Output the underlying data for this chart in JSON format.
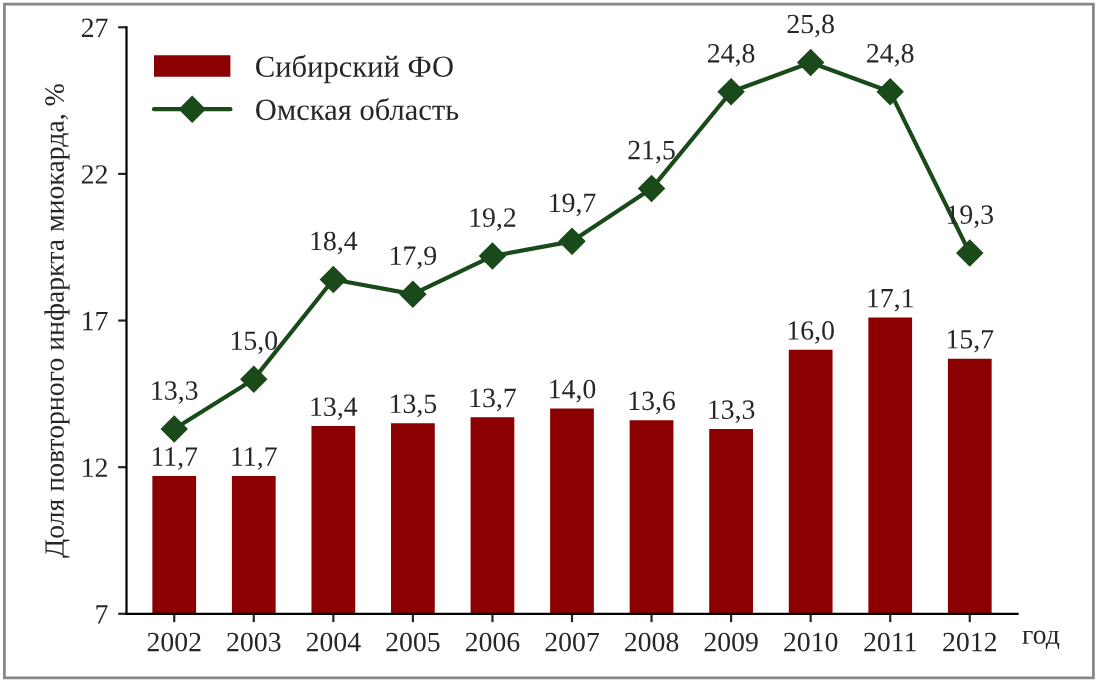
{
  "chart_data": {
    "type": "bar",
    "categories": [
      "2002",
      "2003",
      "2004",
      "2005",
      "2006",
      "2007",
      "2008",
      "2009",
      "2010",
      "2011",
      "2012"
    ],
    "xlabel": "год",
    "ylabel": "Доля повторного инфаркта миокарда, %",
    "ylim": [
      7,
      27
    ],
    "yticks": [
      7,
      12,
      17,
      22,
      27
    ],
    "grid": false,
    "legend": "top left",
    "series": [
      {
        "name": "Сибирский ФО",
        "color": "#8b0000",
        "values": [
          11.7,
          11.7,
          13.4,
          13.5,
          13.7,
          14.0,
          13.6,
          13.3,
          16.0,
          17.1,
          15.7
        ],
        "value_labels": [
          "11,7",
          "11,7",
          "13,4",
          "13,5",
          "13,7",
          "14,0",
          "13,6",
          "13,3",
          "16,0",
          "17,1",
          "15,7"
        ]
      },
      {
        "name": "Омская область",
        "type": "line",
        "color": "#1a4a1a",
        "marker": "diamond",
        "line_style": "solid",
        "values": [
          13.3,
          15.0,
          18.4,
          17.9,
          19.2,
          19.7,
          21.5,
          24.8,
          25.8,
          24.8,
          19.3
        ],
        "value_labels": [
          "13,3",
          "15,0",
          "18,4",
          "17,9",
          "19,2",
          "19,7",
          "21,5",
          "24,8",
          "25,8",
          "24,8",
          "19,3"
        ]
      }
    ]
  }
}
